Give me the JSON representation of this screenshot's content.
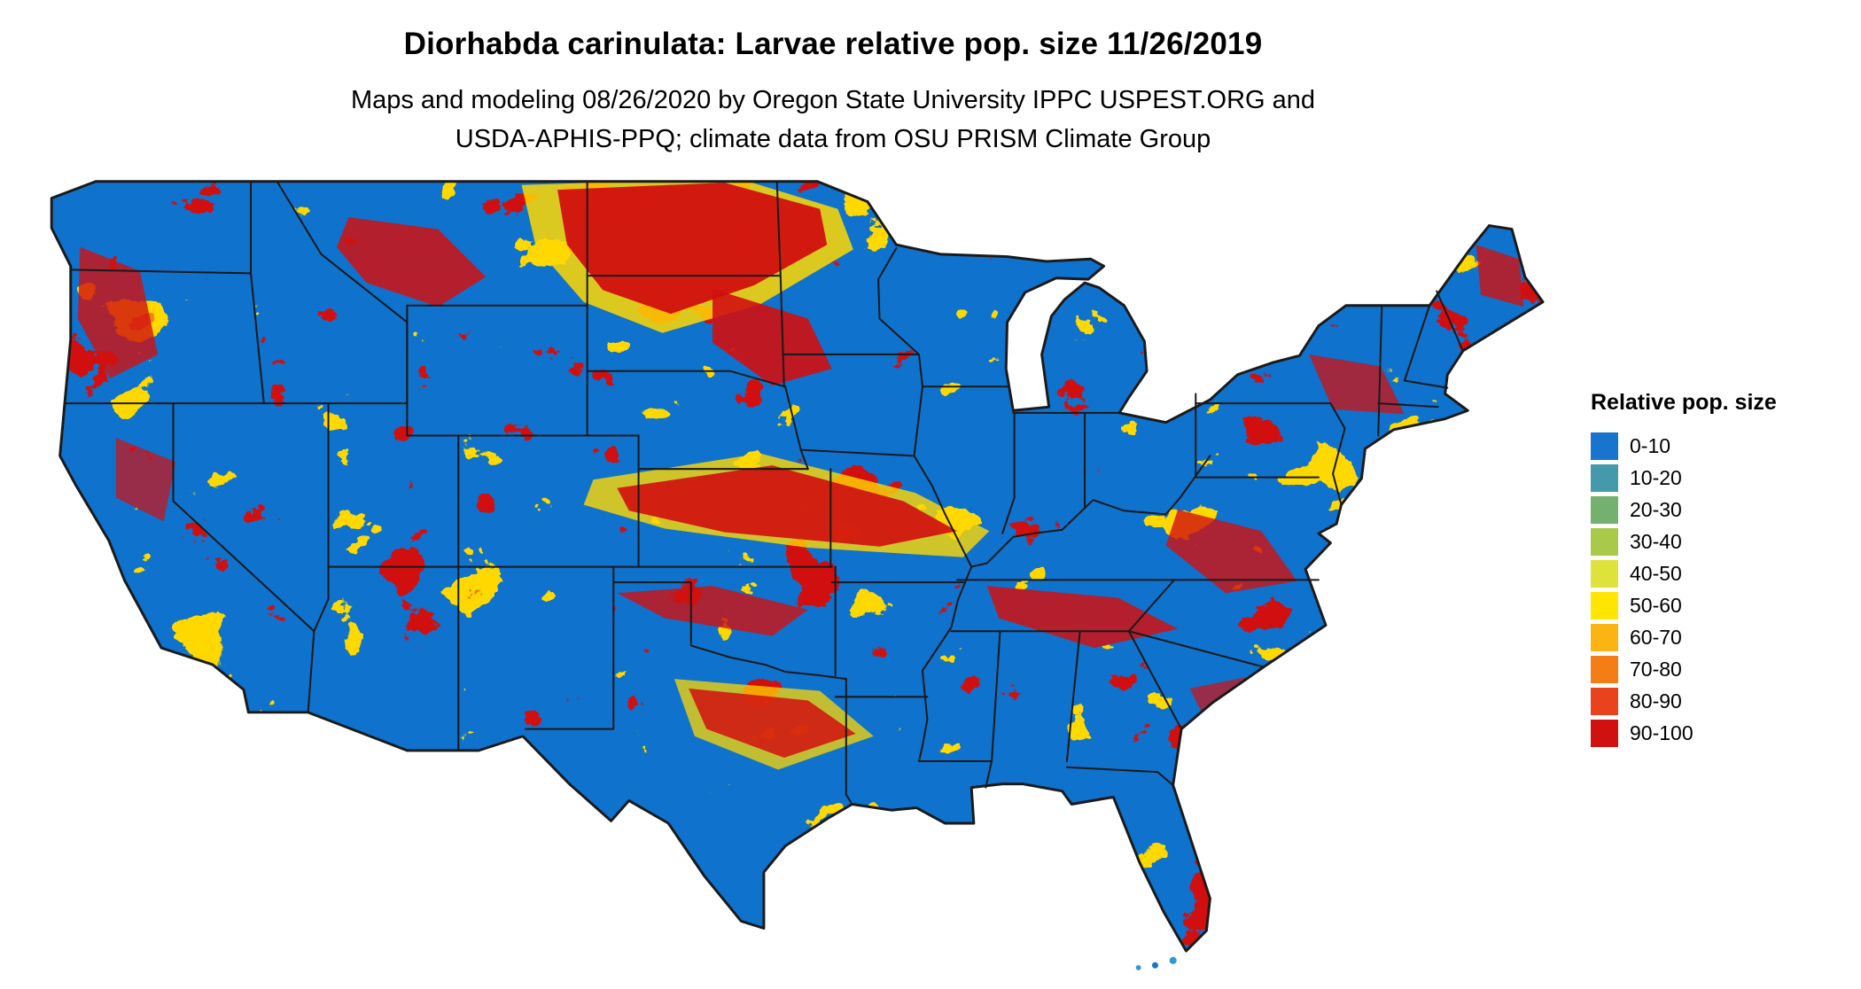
{
  "header": {
    "title": "Diorhabda carinulata: Larvae relative pop. size 11/26/2019",
    "subtitle_line1": "Maps and modeling 08/26/2020 by Oregon State University IPPC USPEST.ORG and",
    "subtitle_line2": "USDA-APHIS-PPQ; climate data from OSU PRISM Climate Group"
  },
  "legend": {
    "title": "Relative pop. size",
    "bins": [
      {
        "label": "0-10",
        "color": "#1874cd"
      },
      {
        "label": "10-20",
        "color": "#4499aa"
      },
      {
        "label": "20-30",
        "color": "#74b06e"
      },
      {
        "label": "30-40",
        "color": "#a8c94a"
      },
      {
        "label": "40-50",
        "color": "#dfe23b"
      },
      {
        "label": "50-60",
        "color": "#ffe600"
      },
      {
        "label": "60-70",
        "color": "#fcb414"
      },
      {
        "label": "70-80",
        "color": "#f57d16"
      },
      {
        "label": "80-90",
        "color": "#e8431c"
      },
      {
        "label": "90-100",
        "color": "#d11010"
      }
    ]
  },
  "map": {
    "colors": {
      "water": "#ffffff",
      "state_border": "#1a1a1a",
      "base_fill": "#1874cd",
      "high_fill": "#d11010",
      "mid_fill": "#ffd800"
    }
  }
}
